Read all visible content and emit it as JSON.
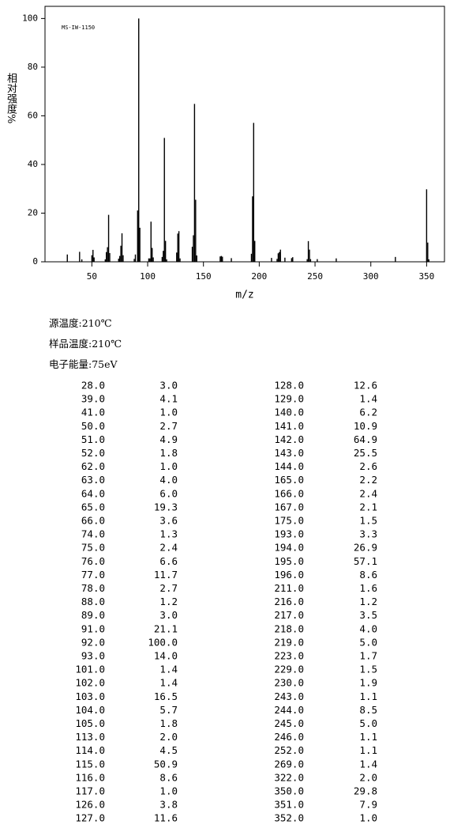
{
  "chart_data": {
    "type": "stick",
    "annotation": "MS-IW-1150",
    "y_label": "相对强度%",
    "x_label": "m/z",
    "x": [
      28,
      39,
      41,
      50,
      51,
      52,
      62,
      63,
      64,
      65,
      66,
      74,
      75,
      76,
      77,
      78,
      88,
      89,
      91,
      92,
      93,
      101,
      102,
      103,
      104,
      105,
      113,
      114,
      115,
      116,
      117,
      126,
      127,
      128,
      129,
      140,
      141,
      142,
      143,
      144,
      165,
      166,
      167,
      175,
      193,
      194,
      195,
      196,
      211,
      216,
      217,
      218,
      219,
      223,
      229,
      230,
      243,
      244,
      245,
      246,
      252,
      269,
      322,
      350,
      351,
      352
    ],
    "values": [
      3.0,
      4.1,
      1.0,
      2.7,
      4.9,
      1.8,
      1.0,
      4.0,
      6.0,
      19.3,
      3.6,
      1.3,
      2.4,
      6.6,
      11.7,
      2.7,
      1.2,
      3.0,
      21.1,
      100,
      14.0,
      1.4,
      1.4,
      16.5,
      5.7,
      1.8,
      2.0,
      4.5,
      50.9,
      8.6,
      1.0,
      3.8,
      11.6,
      12.6,
      1.4,
      6.2,
      10.9,
      64.9,
      25.5,
      2.6,
      2.2,
      2.4,
      2.1,
      1.5,
      3.3,
      26.9,
      57.1,
      8.6,
      1.6,
      1.2,
      3.5,
      4.0,
      5.0,
      1.7,
      1.5,
      1.9,
      1.1,
      8.5,
      5.0,
      1.1,
      1.1,
      1.4,
      2.0,
      29.8,
      7.9,
      1.0
    ],
    "color": "#000000",
    "xlim": [
      8,
      366
    ],
    "ylim": [
      0,
      105
    ],
    "xticks": [
      50,
      100,
      150,
      200,
      250,
      300,
      350
    ],
    "yticks": [
      0,
      20,
      40,
      60,
      80,
      100
    ]
  },
  "conditions": [
    "源温度:210℃",
    "样品温度:210℃",
    "电子能量:75eV"
  ],
  "table": {
    "rows": [
      [
        "28.0",
        "3.0",
        "128.0",
        "12.6"
      ],
      [
        "39.0",
        "4.1",
        "129.0",
        "1.4"
      ],
      [
        "41.0",
        "1.0",
        "140.0",
        "6.2"
      ],
      [
        "50.0",
        "2.7",
        "141.0",
        "10.9"
      ],
      [
        "51.0",
        "4.9",
        "142.0",
        "64.9"
      ],
      [
        "52.0",
        "1.8",
        "143.0",
        "25.5"
      ],
      [
        "62.0",
        "1.0",
        "144.0",
        "2.6"
      ],
      [
        "63.0",
        "4.0",
        "165.0",
        "2.2"
      ],
      [
        "64.0",
        "6.0",
        "166.0",
        "2.4"
      ],
      [
        "65.0",
        "19.3",
        "167.0",
        "2.1"
      ],
      [
        "66.0",
        "3.6",
        "175.0",
        "1.5"
      ],
      [
        "74.0",
        "1.3",
        "193.0",
        "3.3"
      ],
      [
        "75.0",
        "2.4",
        "194.0",
        "26.9"
      ],
      [
        "76.0",
        "6.6",
        "195.0",
        "57.1"
      ],
      [
        "77.0",
        "11.7",
        "196.0",
        "8.6"
      ],
      [
        "78.0",
        "2.7",
        "211.0",
        "1.6"
      ],
      [
        "88.0",
        "1.2",
        "216.0",
        "1.2"
      ],
      [
        "89.0",
        "3.0",
        "217.0",
        "3.5"
      ],
      [
        "91.0",
        "21.1",
        "218.0",
        "4.0"
      ],
      [
        "92.0",
        "100.0",
        "219.0",
        "5.0"
      ],
      [
        "93.0",
        "14.0",
        "223.0",
        "1.7"
      ],
      [
        "101.0",
        "1.4",
        "229.0",
        "1.5"
      ],
      [
        "102.0",
        "1.4",
        "230.0",
        "1.9"
      ],
      [
        "103.0",
        "16.5",
        "243.0",
        "1.1"
      ],
      [
        "104.0",
        "5.7",
        "244.0",
        "8.5"
      ],
      [
        "105.0",
        "1.8",
        "245.0",
        "5.0"
      ],
      [
        "113.0",
        "2.0",
        "246.0",
        "1.1"
      ],
      [
        "114.0",
        "4.5",
        "252.0",
        "1.1"
      ],
      [
        "115.0",
        "50.9",
        "269.0",
        "1.4"
      ],
      [
        "116.0",
        "8.6",
        "322.0",
        "2.0"
      ],
      [
        "117.0",
        "1.0",
        "350.0",
        "29.8"
      ],
      [
        "126.0",
        "3.8",
        "351.0",
        "7.9"
      ],
      [
        "127.0",
        "11.6",
        "352.0",
        "1.0"
      ]
    ]
  }
}
